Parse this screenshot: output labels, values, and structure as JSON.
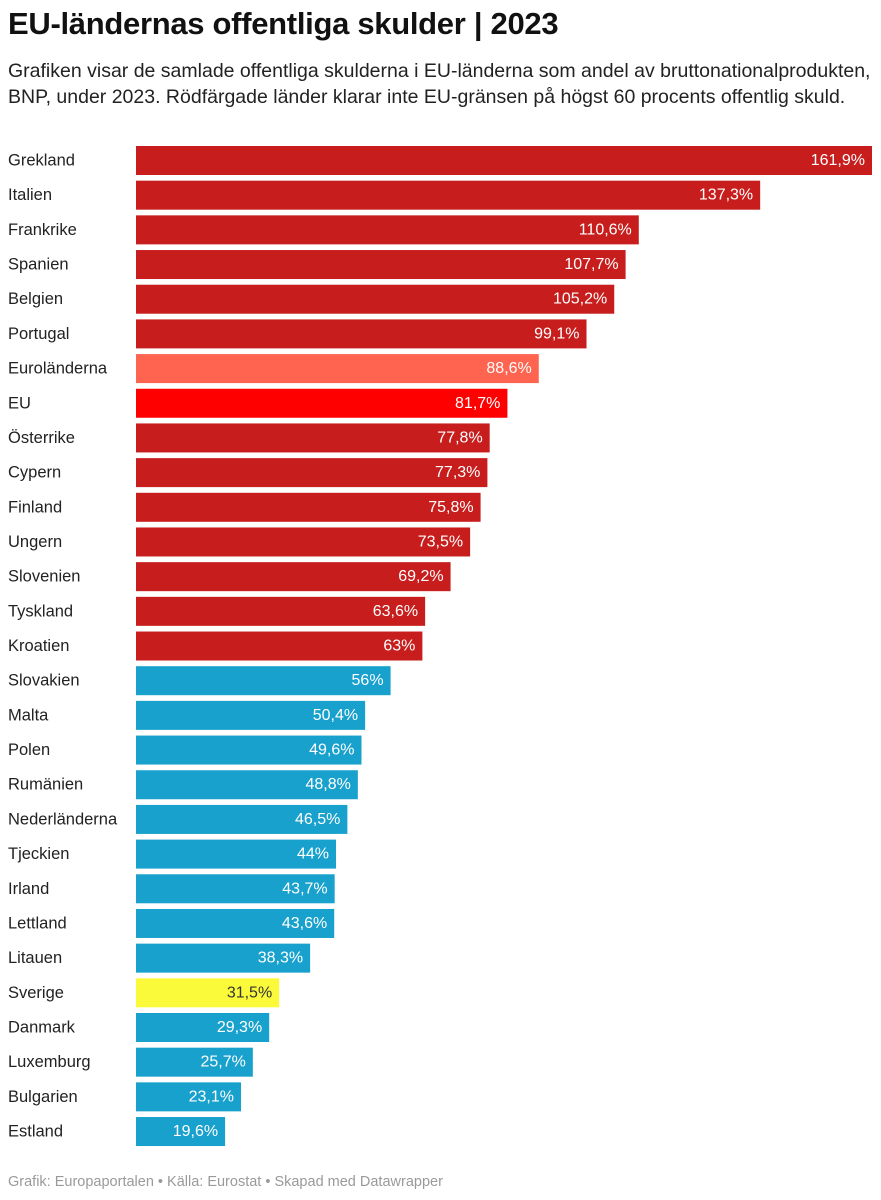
{
  "header": {
    "title": "EU-ländernas offentliga skulder | 2023",
    "subtitle": "Grafiken visar de samlade offentliga skulderna i EU-länderna som andel av bruttonationalprodukten, BNP, under 2023. Rödfärgade länder klarar inte EU-gränsen på högst 60 procents offentlig skuld."
  },
  "footer": {
    "text": "Grafik: Europaportalen • Källa: Eurostat • Skapad med Datawrapper"
  },
  "colors": {
    "over_limit": "#c71e1d",
    "euro_area": "#fe6450",
    "eu": "#ff0000",
    "under_limit": "#18a1cd",
    "sweden": "#fafa3b"
  },
  "chart_data": {
    "type": "bar",
    "orientation": "horizontal",
    "title": "EU-ländernas offentliga skulder | 2023",
    "xlabel": "",
    "ylabel": "",
    "xlim": [
      0,
      161.9
    ],
    "grid": false,
    "legend": "none",
    "categories": [
      "Grekland",
      "Italien",
      "Frankrike",
      "Spanien",
      "Belgien",
      "Portugal",
      "Euroländerna",
      "EU",
      "Österrike",
      "Cypern",
      "Finland",
      "Ungern",
      "Slovenien",
      "Tyskland",
      "Kroatien",
      "Slovakien",
      "Malta",
      "Polen",
      "Rumänien",
      "Nederländerna",
      "Tjeckien",
      "Irland",
      "Lettland",
      "Litauen",
      "Sverige",
      "Danmark",
      "Luxemburg",
      "Bulgarien",
      "Estland"
    ],
    "values": [
      161.9,
      137.3,
      110.6,
      107.7,
      105.2,
      99.1,
      88.6,
      81.7,
      77.8,
      77.3,
      75.8,
      73.5,
      69.2,
      63.6,
      63,
      56,
      50.4,
      49.6,
      48.8,
      46.5,
      44,
      43.7,
      43.6,
      38.3,
      31.5,
      29.3,
      25.7,
      23.1,
      19.6
    ],
    "value_labels": [
      "161,9%",
      "137,3%",
      "110,6%",
      "107,7%",
      "105,2%",
      "99,1%",
      "88,6%",
      "81,7%",
      "77,8%",
      "77,3%",
      "75,8%",
      "73,5%",
      "69,2%",
      "63,6%",
      "63%",
      "56%",
      "50,4%",
      "49,6%",
      "48,8%",
      "46,5%",
      "44%",
      "43,7%",
      "43,6%",
      "38,3%",
      "31,5%",
      "29,3%",
      "25,7%",
      "23,1%",
      "19,6%"
    ],
    "bar_colors": [
      "#c71e1d",
      "#c71e1d",
      "#c71e1d",
      "#c71e1d",
      "#c71e1d",
      "#c71e1d",
      "#fe6450",
      "#ff0000",
      "#c71e1d",
      "#c71e1d",
      "#c71e1d",
      "#c71e1d",
      "#c71e1d",
      "#c71e1d",
      "#c71e1d",
      "#18a1cd",
      "#18a1cd",
      "#18a1cd",
      "#18a1cd",
      "#18a1cd",
      "#18a1cd",
      "#18a1cd",
      "#18a1cd",
      "#18a1cd",
      "#fafa3b",
      "#18a1cd",
      "#18a1cd",
      "#18a1cd",
      "#18a1cd"
    ],
    "label_colors": [
      "#ffffff",
      "#ffffff",
      "#ffffff",
      "#ffffff",
      "#ffffff",
      "#ffffff",
      "#ffffff",
      "#ffffff",
      "#ffffff",
      "#ffffff",
      "#ffffff",
      "#ffffff",
      "#ffffff",
      "#ffffff",
      "#ffffff",
      "#ffffff",
      "#ffffff",
      "#ffffff",
      "#ffffff",
      "#ffffff",
      "#ffffff",
      "#ffffff",
      "#ffffff",
      "#ffffff",
      "#333333",
      "#ffffff",
      "#ffffff",
      "#ffffff",
      "#ffffff"
    ]
  }
}
